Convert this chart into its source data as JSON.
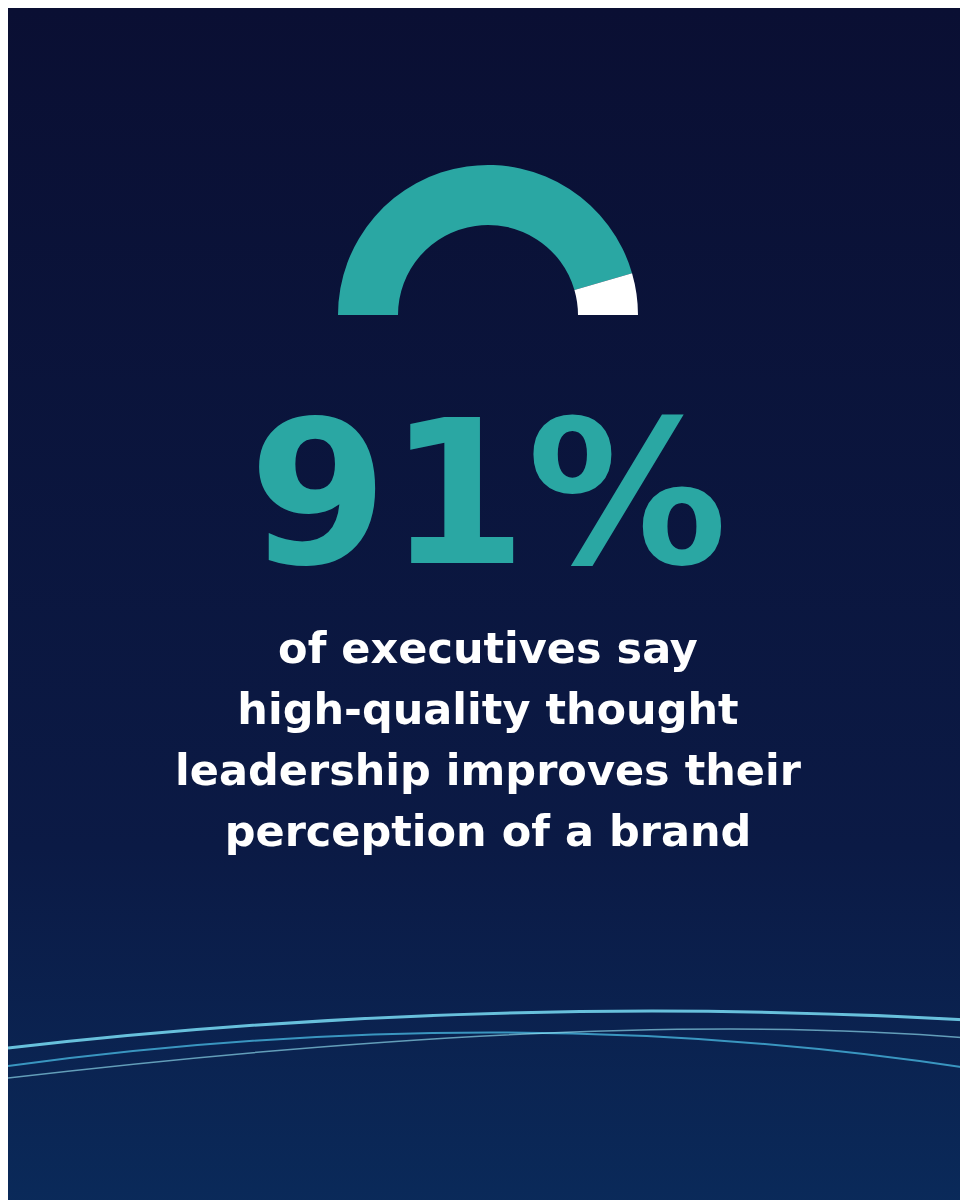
{
  "chart_data": {
    "type": "donut",
    "categories": [
      null,
      null
    ],
    "values": [
      91,
      9
    ],
    "colors": [
      "#2aa7a3",
      "#ffffff"
    ],
    "title": "91%",
    "subtitle": "of executives say high-quality thought leadership improves their perception of a brand"
  }
}
